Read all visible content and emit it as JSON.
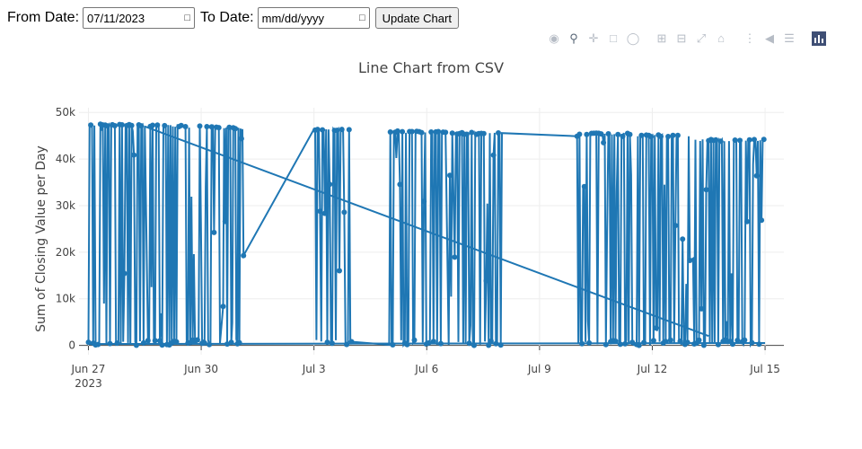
{
  "controls": {
    "from_label": "From Date:",
    "from_value": "07/11/2023",
    "to_label": "To Date:",
    "to_value": "mm/dd/yyyy",
    "update_label": "Update Chart"
  },
  "modebar": {
    "icons": [
      "camera-icon",
      "zoom-icon",
      "pan-icon",
      "box-select-icon",
      "lasso-icon",
      "zoom-in-icon",
      "zoom-out-icon",
      "autoscale-icon",
      "reset-icon",
      "spike-lines-icon",
      "hover-closest-icon",
      "hover-compare-icon",
      "plotly-logo-icon"
    ],
    "active": "zoom-icon"
  },
  "chart_data": {
    "type": "line",
    "title": "Line Chart from CSV",
    "xlabel": "",
    "ylabel": "Sum of Closing Value per Day",
    "x_tick_labels": [
      "Jun 27",
      "Jun 30",
      "Jul 3",
      "Jul 6",
      "Jul 9",
      "Jul 12",
      "Jul 15"
    ],
    "x_tick_year": "2023",
    "y_tick_labels": [
      "0",
      "10k",
      "20k",
      "30k",
      "40k",
      "50k"
    ],
    "y_ticks": [
      0,
      10000,
      20000,
      30000,
      40000,
      50000
    ],
    "xlim": [
      "2023-06-26 18:00",
      "2023-07-15 12:00"
    ],
    "ylim": [
      -2000,
      51000
    ],
    "line_color": "#1f77b4",
    "series": [
      {
        "clusters": [
          {
            "start": "2023-06-27 00:00",
            "end": "2023-06-28 12:00",
            "peak": 47500
          },
          {
            "start": "2023-06-28 14:00",
            "end": "2023-06-29 12:00",
            "peak": 47300
          },
          {
            "start": "2023-06-29 14:00",
            "end": "2023-06-30 12:00",
            "peak": 47100
          },
          {
            "start": "2023-06-30 14:00",
            "end": "2023-07-01 03:00",
            "peak": 46800
          },
          {
            "start": "2023-07-03 00:00",
            "end": "2023-07-04 00:00",
            "peak": 46500
          },
          {
            "start": "2023-07-05 00:00",
            "end": "2023-07-06 12:00",
            "peak": 46000
          },
          {
            "start": "2023-07-06 14:00",
            "end": "2023-07-08 00:00",
            "peak": 45700
          },
          {
            "start": "2023-07-10 00:00",
            "end": "2023-07-11 12:00",
            "peak": 45600
          },
          {
            "start": "2023-07-11 14:00",
            "end": "2023-07-13 00:00",
            "peak": 45200
          },
          {
            "start": "2023-07-13 02:00",
            "end": "2023-07-15 00:00",
            "peak": 44200
          }
        ],
        "diagonal": [
          [
            "2023-06-28 12:00",
            47000
          ],
          [
            "2023-07-13 12:00",
            2000
          ]
        ]
      }
    ]
  }
}
